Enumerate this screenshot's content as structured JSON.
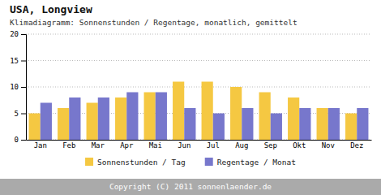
{
  "chart_data": {
    "type": "bar",
    "title": "USA, Longview",
    "subtitle": "Klimadiagramm: Sonnenstunden / Regentage, monatlich, gemittelt",
    "footer": "Copyright (C) 2011 sonnenlaender.de",
    "categories": [
      "Jan",
      "Feb",
      "Mar",
      "Apr",
      "Mai",
      "Jun",
      "Jul",
      "Aug",
      "Sep",
      "Okt",
      "Nov",
      "Dez"
    ],
    "series": [
      {
        "name": "Sonnenstunden / Tag",
        "color": "#F5C842",
        "values": [
          5,
          6,
          7,
          8,
          9,
          11,
          11,
          10,
          9,
          8,
          6,
          5
        ]
      },
      {
        "name": "Regentage / Monat",
        "color": "#7777CC",
        "values": [
          7,
          8,
          8,
          9,
          9,
          6,
          5,
          6,
          5,
          6,
          6,
          6
        ]
      }
    ],
    "ylim": [
      0,
      20
    ],
    "yticks": [
      0,
      5,
      10,
      15,
      20
    ],
    "grid": true,
    "legend": "bottom"
  }
}
